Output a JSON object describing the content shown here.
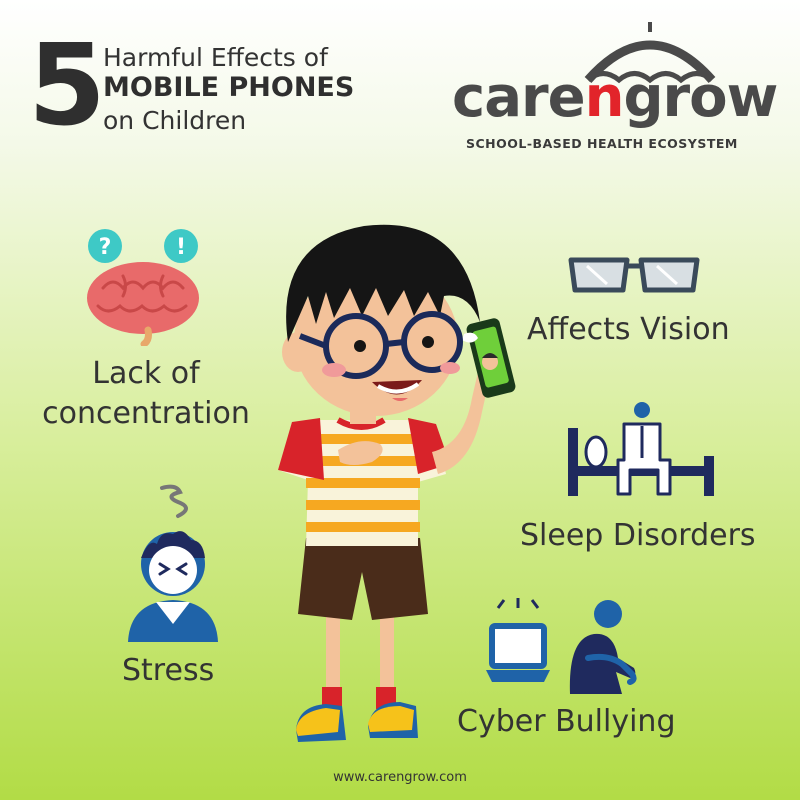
{
  "header": {
    "number": "5",
    "line1": "Harmful Effects of",
    "line2": "MOBILE PHONES",
    "line3": "on Children"
  },
  "logo": {
    "word_part1": "care",
    "word_accent": "n",
    "word_part2": "grow",
    "tagline": "SCHOOL-BASED HEALTH ECOSYSTEM",
    "accent_color": "#e2242a"
  },
  "effects": [
    {
      "label_line1": "Lack of",
      "label_line2": "concentration",
      "icon": "brain-question-icon"
    },
    {
      "label": "Affects Vision",
      "icon": "glasses-icon"
    },
    {
      "label": "Sleep Disorders",
      "icon": "bed-person-icon"
    },
    {
      "label": "Stress",
      "icon": "stressed-person-icon"
    },
    {
      "label": "Cyber Bullying",
      "icon": "laptop-sad-person-icon"
    }
  ],
  "footer": {
    "website": "www.carengrow.com"
  },
  "colors": {
    "navy": "#1f2a5e",
    "blue": "#1f63a8",
    "teal": "#3ec9c6",
    "brain": "#e86a6a",
    "green": "#b2dc46"
  }
}
